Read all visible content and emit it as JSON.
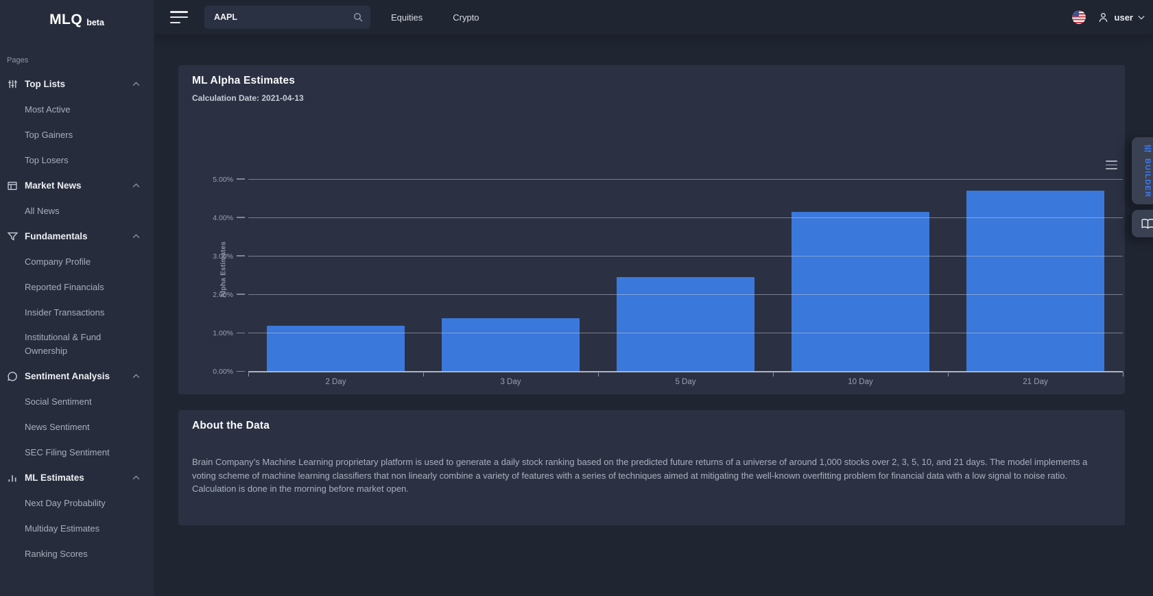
{
  "brand": {
    "name": "MLQ",
    "badge": "beta"
  },
  "topbar": {
    "search_value": "AAPL",
    "tabs": [
      {
        "label": "Equities"
      },
      {
        "label": "Crypto"
      }
    ],
    "user_label": "user"
  },
  "sidebar": {
    "section_label": "Pages",
    "sections": [
      {
        "label": "Top Lists",
        "icon": "sliders-icon",
        "items": [
          "Most Active",
          "Top Gainers",
          "Top Losers"
        ]
      },
      {
        "label": "Market News",
        "icon": "layout-icon",
        "items": [
          "All News"
        ]
      },
      {
        "label": "Fundamentals",
        "icon": "filter-icon",
        "items": [
          "Company Profile",
          "Reported Financials",
          "Insider Transactions",
          "Institutional & Fund Ownership"
        ]
      },
      {
        "label": "Sentiment Analysis",
        "icon": "chat-bubble-icon",
        "items": [
          "Social Sentiment",
          "News Sentiment",
          "SEC Filing Sentiment"
        ]
      },
      {
        "label": "ML Estimates",
        "icon": "bar-chart-icon",
        "items": [
          "Next Day Probability",
          "Multiday Estimates",
          "Ranking Scores"
        ]
      }
    ]
  },
  "main": {
    "alpha_card": {
      "title": "ML Alpha Estimates",
      "subtitle": "Calculation Date: 2021-04-13"
    },
    "about_card": {
      "title": "About the Data",
      "body": "Brain Company’s Machine Learning proprietary platform is used to generate a daily stock ranking based on the predicted future returns of a universe of around 1,000 stocks over 2, 3, 5, 10, and 21 days. The model implements a voting scheme of machine learning classifiers that non linearly combine a variety of features with a series of techniques aimed at mitigating the well-known overfitting problem for financial data with a low signal to noise ratio. Calculation is done in the morning before market open."
    }
  },
  "right_rail": {
    "builder_label": "BUILDER"
  },
  "chart_data": {
    "type": "bar",
    "title": "ML Alpha Estimates",
    "categories": [
      "2 Day",
      "3 Day",
      "5 Day",
      "10 Day",
      "21 Day"
    ],
    "values": [
      1.2,
      1.39,
      2.46,
      4.16,
      4.71
    ],
    "xlabel": "",
    "ylabel": "Alpha Estimates",
    "yticks_labels": [
      "0.00%",
      "1.00%",
      "2.00%",
      "3.00%",
      "4.00%",
      "5.00%"
    ],
    "yticks_values": [
      0,
      1,
      2,
      3,
      4,
      5
    ],
    "ylim": [
      0,
      5.32
    ],
    "grid": true,
    "legend": "none",
    "bar_color": "#3B78DC"
  },
  "colors": {
    "page_bg": "#202532",
    "sidebar_bg": "#262C3C",
    "card_bg": "#2B3143",
    "bar_blue": "#3B78DC",
    "builder_blue": "#3D7BF5",
    "rail_tab_bg": "#3A4153"
  }
}
